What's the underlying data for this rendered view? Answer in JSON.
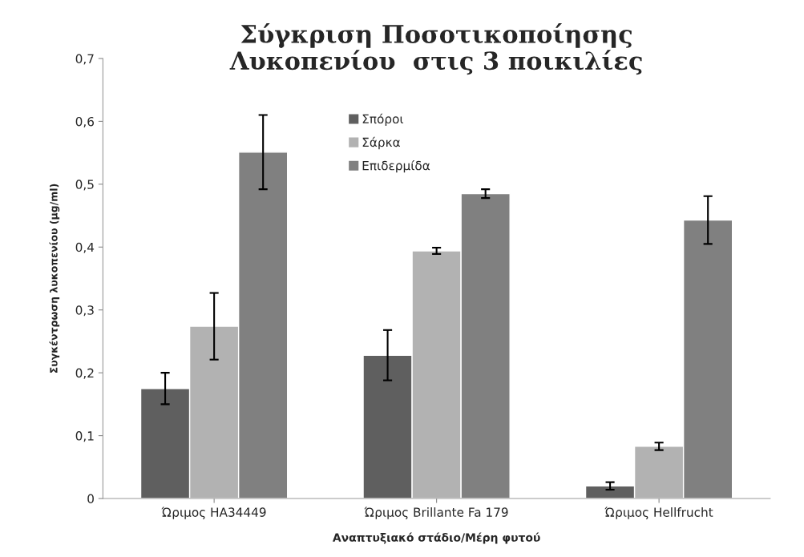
{
  "chart_data": {
    "type": "bar",
    "title": "Σύγκριση Ποσοτικοποίησης\nΛυκοπενίου  στις 3 ποικιλίες",
    "xlabel": "Αναπτυξιακό στάδιο/Μέρη φυτού",
    "ylabel": "Συγκέντρωση λυκοπενίου (μg/ml)",
    "categories": [
      "Ώριμος HA34449",
      "Ώριμος Brillante Fa 179",
      "Ώριμος Hellfrucht"
    ],
    "series": [
      {
        "name": "Σπόροι",
        "color": "#5f5f5f",
        "values": [
          0.175,
          0.228,
          0.02
        ],
        "errors": [
          0.025,
          0.04,
          0.006
        ]
      },
      {
        "name": "Σάρκα",
        "color": "#b2b2b2",
        "values": [
          0.274,
          0.394,
          0.083
        ],
        "errors": [
          0.053,
          0.005,
          0.006
        ]
      },
      {
        "name": "Επιδερμίδα",
        "color": "#808080",
        "values": [
          0.551,
          0.485,
          0.443
        ],
        "errors": [
          0.059,
          0.007,
          0.038
        ]
      }
    ],
    "ylim": [
      0,
      0.7
    ],
    "yticks": [
      0,
      {
        "value": 0.1,
        "label": "0,1"
      },
      {
        "value": 0.2,
        "label": "0,2"
      },
      {
        "value": 0.3,
        "label": "0,3"
      },
      {
        "value": 0.4,
        "label": "0,4"
      },
      {
        "value": 0.5,
        "label": "0,5"
      },
      {
        "value": 0.6,
        "label": "0,6"
      },
      {
        "value": 0.7,
        "label": "0,7"
      }
    ],
    "grid": false,
    "legend": "top"
  }
}
